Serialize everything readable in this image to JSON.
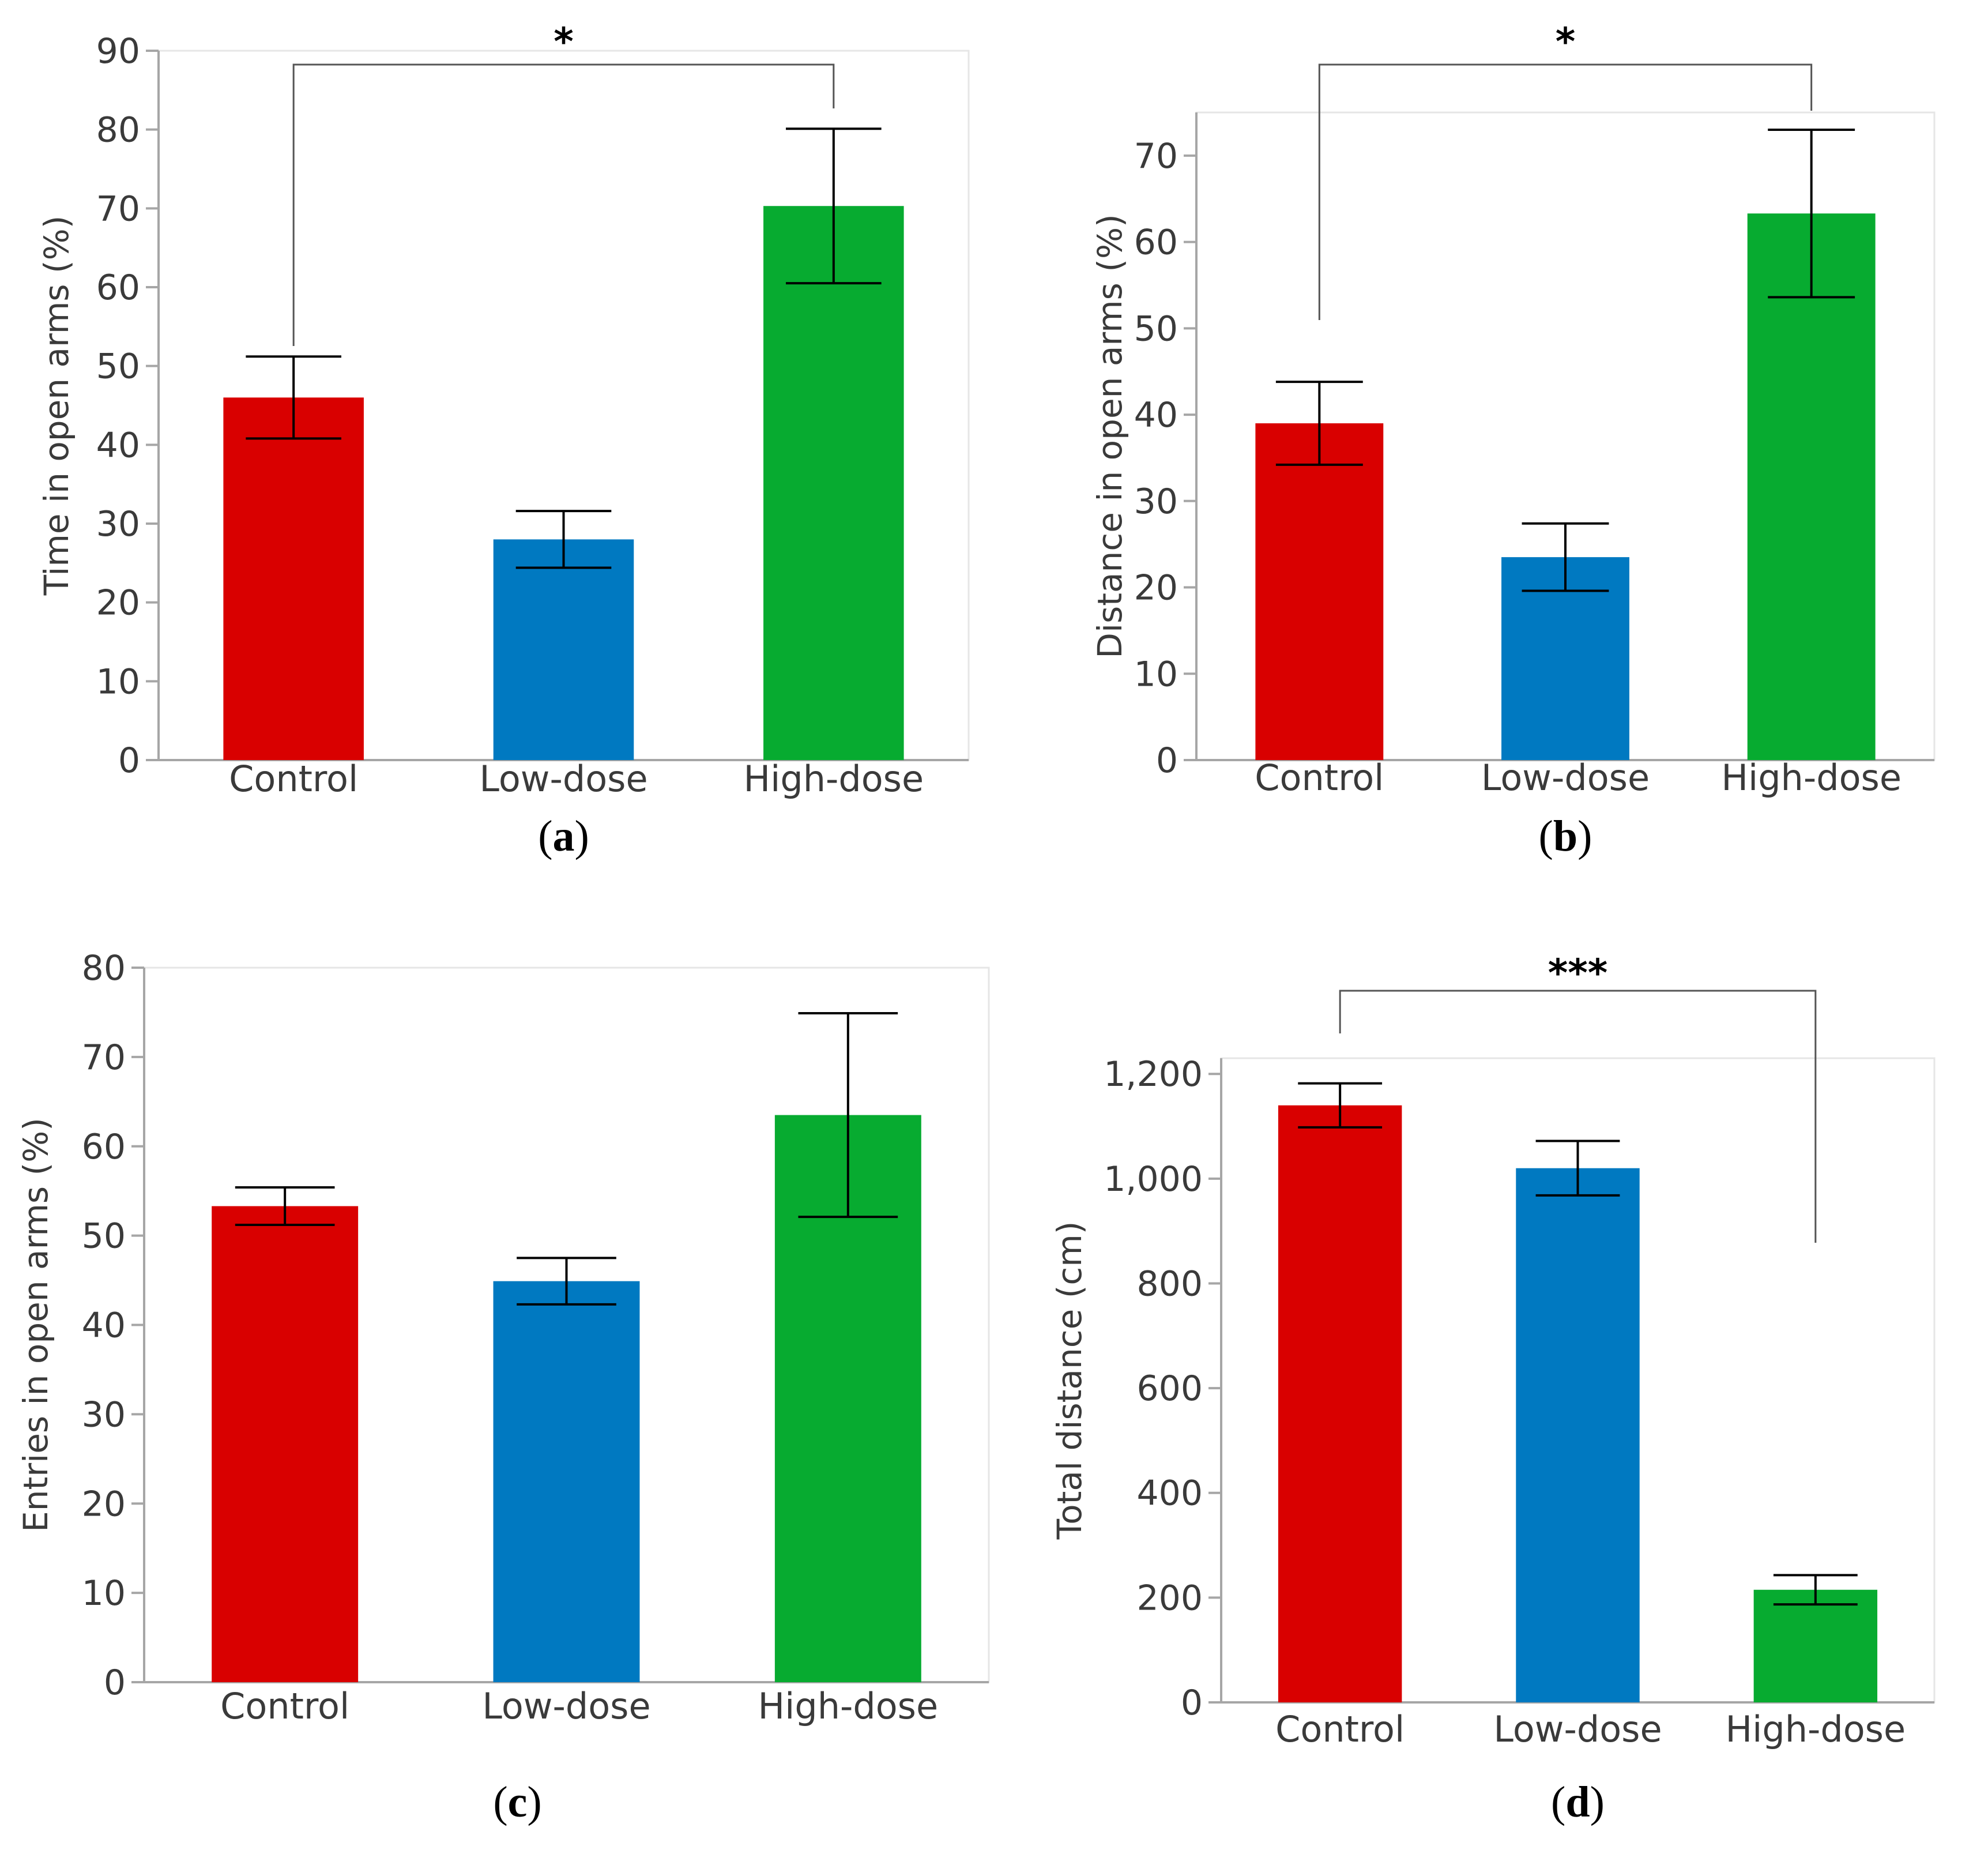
{
  "chart_data": [
    {
      "type": "bar",
      "panel": "a",
      "ylabel": "Time in open arms (%)",
      "categories": [
        "Control",
        "Low-dose",
        "High-dose"
      ],
      "values": [
        46,
        28,
        70.3
      ],
      "errors": [
        5.2,
        3.6,
        9.8
      ],
      "colors": [
        "#d90000",
        "#0079c1",
        "#07ab30"
      ],
      "ylim": [
        0,
        90
      ],
      "yticks": [
        "0",
        "10",
        "20",
        "30",
        "40",
        "50",
        "60",
        "70",
        "80",
        "90"
      ],
      "significance": {
        "from": 0,
        "to": 2,
        "label": "*"
      }
    },
    {
      "type": "bar",
      "panel": "b",
      "ylabel": "Distance in open arms (%)",
      "categories": [
        "Control",
        "Low-dose",
        "High-dose"
      ],
      "values": [
        39,
        23.5,
        63.3
      ],
      "errors": [
        4.8,
        3.9,
        9.7
      ],
      "colors": [
        "#d90000",
        "#0079c1",
        "#07ab30"
      ],
      "ylim": [
        0,
        75
      ],
      "yticks": [
        "0",
        "10",
        "20",
        "30",
        "40",
        "50",
        "60",
        "70"
      ],
      "significance": {
        "from": 0,
        "to": 2,
        "label": "*"
      }
    },
    {
      "type": "bar",
      "panel": "c",
      "ylabel": "Entries in open arms (%)",
      "categories": [
        "Control",
        "Low-dose",
        "High-dose"
      ],
      "values": [
        53.3,
        44.9,
        63.5
      ],
      "errors": [
        2.1,
        2.6,
        11.4
      ],
      "colors": [
        "#d90000",
        "#0079c1",
        "#07ab30"
      ],
      "ylim": [
        0,
        80
      ],
      "yticks": [
        "0",
        "10",
        "20",
        "30",
        "40",
        "50",
        "60",
        "70",
        "80"
      ]
    },
    {
      "type": "bar",
      "panel": "d",
      "ylabel": "Total distance (cm)",
      "categories": [
        "Control",
        "Low-dose",
        "High-dose"
      ],
      "values": [
        1140,
        1020,
        215
      ],
      "errors": [
        42,
        52,
        28
      ],
      "colors": [
        "#d90000",
        "#0079c1",
        "#07ab30"
      ],
      "ylim": [
        0,
        1230
      ],
      "yticks": [
        "0",
        "200",
        "400",
        "600",
        "800",
        "1,000",
        "1,200"
      ],
      "significance": {
        "from": 0,
        "to": 2,
        "label": "***"
      }
    }
  ],
  "panel_labels": [
    "a",
    "b",
    "c",
    "d"
  ]
}
